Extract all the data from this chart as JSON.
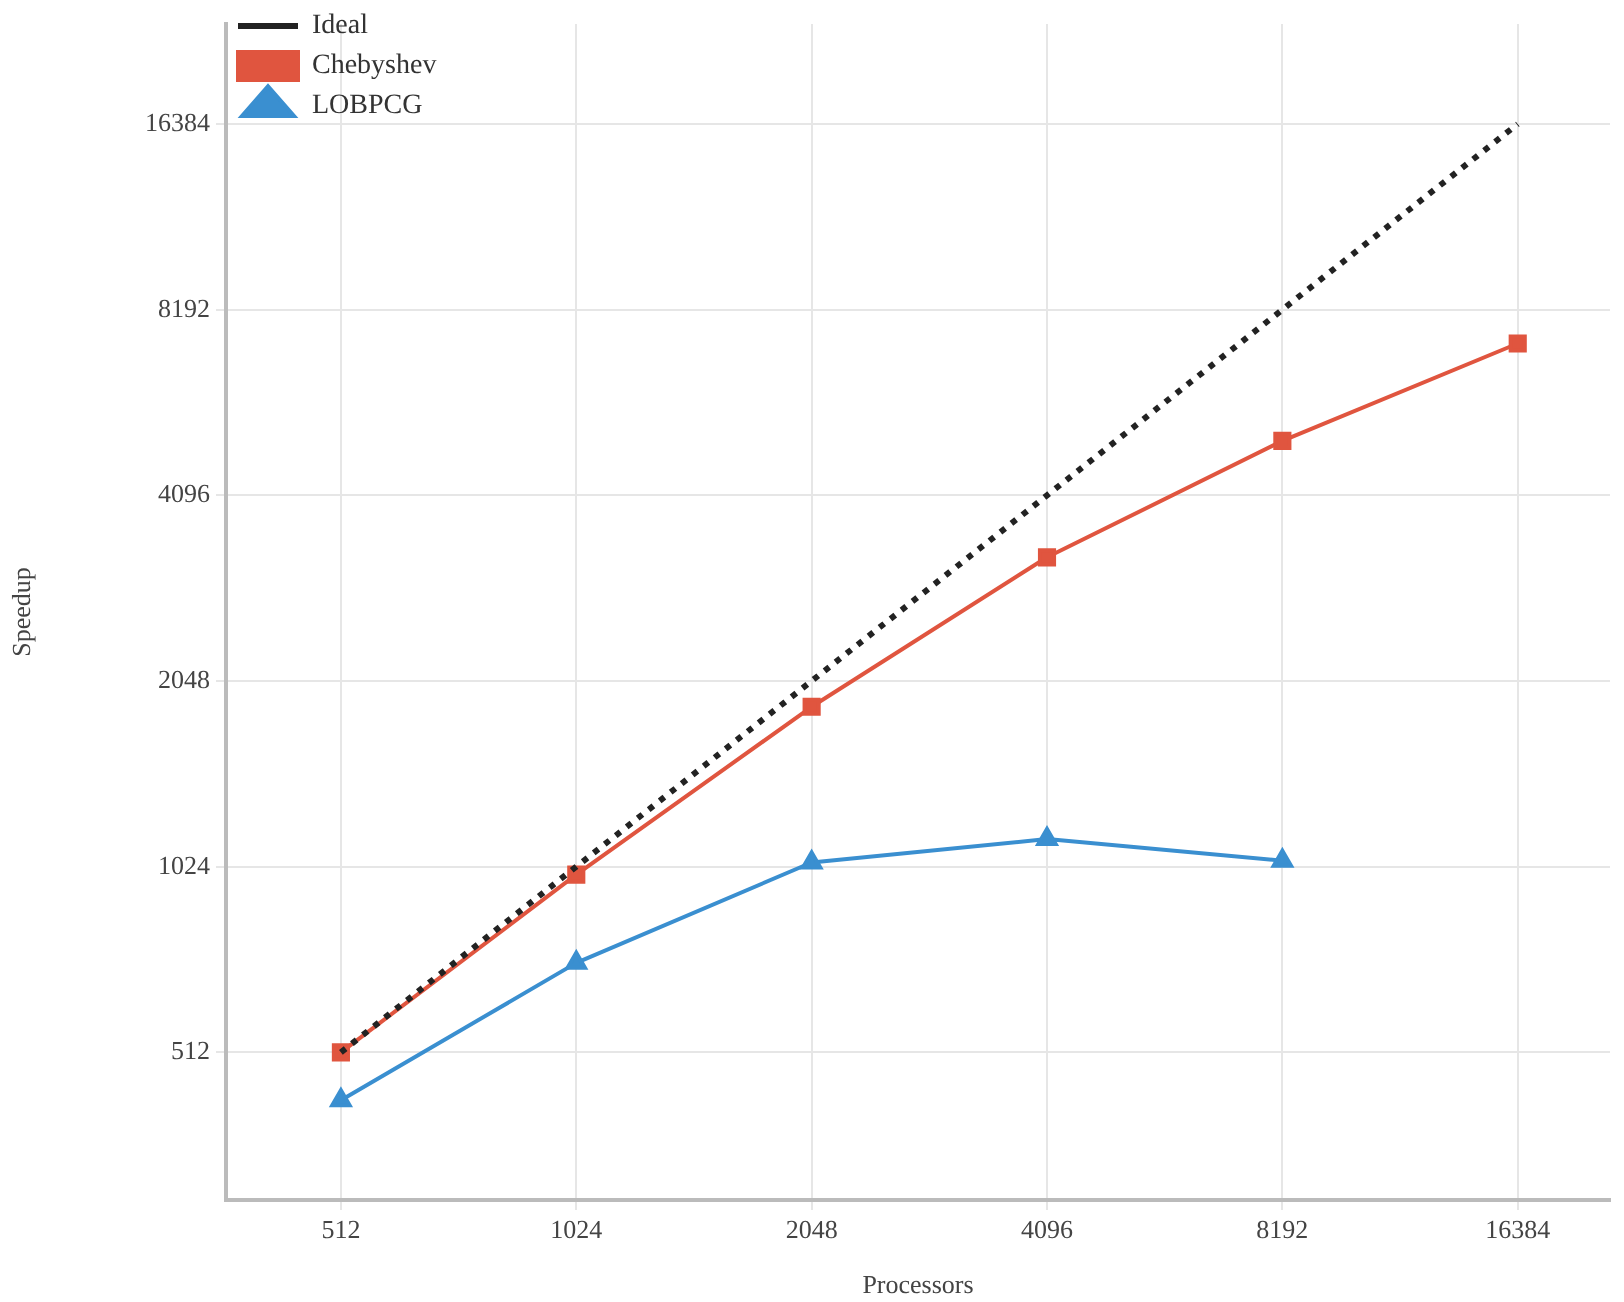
{
  "chart_data": {
    "type": "line",
    "xlabel": "Processors",
    "ylabel": "Speedup",
    "x": [
      512,
      1024,
      2048,
      4096,
      8192,
      16384
    ],
    "series": [
      {
        "name": "Ideal",
        "color": "#222222",
        "values": [
          512,
          1024,
          2048,
          4096,
          8192,
          16384
        ],
        "marker": "none",
        "line_style": "dotted"
      },
      {
        "name": "Chebyshev",
        "color": "#e0553f",
        "values": [
          512,
          994,
          1860,
          3250,
          5020,
          7220
        ],
        "marker": "square",
        "line_style": "solid"
      },
      {
        "name": "LOBPCG",
        "color": "#3a8fd0",
        "values": [
          428,
          715,
          1040,
          1135,
          1047,
          null
        ],
        "marker": "triangle",
        "line_style": "solid"
      }
    ],
    "log": "xy",
    "xlim": [
      365,
      21500
    ],
    "ylim": [
      295,
      23800
    ],
    "xticks": [
      512,
      1024,
      2048,
      4096,
      8192,
      16384
    ],
    "yticks": [
      512,
      1024,
      2048,
      4096,
      8192,
      16384
    ],
    "grid": true,
    "legend": "top left"
  }
}
